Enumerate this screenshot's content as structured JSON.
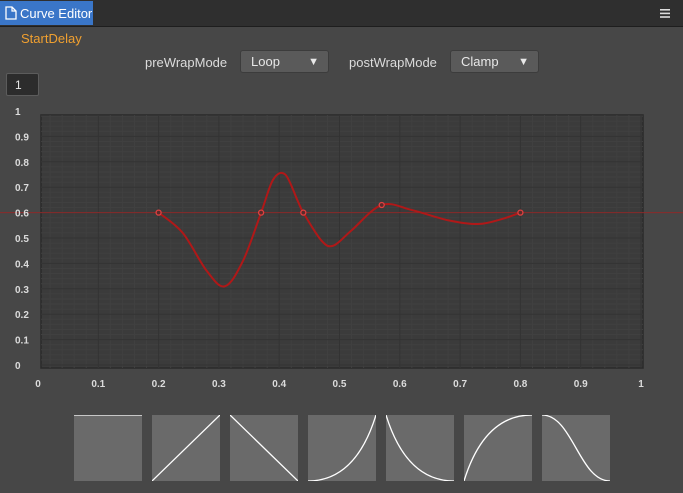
{
  "window": {
    "tab_title": "Curve Editor",
    "tab_icon": "document-icon",
    "menu_icon": "hamburger-menu-icon"
  },
  "curve_name": "StartDelay",
  "wrap": {
    "pre_label": "preWrapMode",
    "pre_value": "Loop",
    "post_label": "postWrapMode",
    "post_value": "Clamp",
    "arrow": "▼"
  },
  "y_max_value": "1",
  "colors": {
    "curve": "#b01818",
    "keyframe": "#e04040",
    "accent_tab": "#3a76c8",
    "curve_name": "#f0a030",
    "zero_line": "#8a2a2a"
  },
  "chart_data": {
    "type": "line",
    "xlim": [
      0,
      1
    ],
    "ylim": [
      0,
      1
    ],
    "x_ticks": [
      "0",
      "0.1",
      "0.2",
      "0.3",
      "0.4",
      "0.5",
      "0.6",
      "0.7",
      "0.8",
      "0.9",
      "1"
    ],
    "y_ticks": [
      "0",
      "0.1",
      "0.2",
      "0.3",
      "0.4",
      "0.5",
      "0.6",
      "0.7",
      "0.8",
      "0.9",
      "1"
    ],
    "grid": true,
    "reference_line_y": 0.6,
    "keyframes": [
      {
        "x": 0.2,
        "y": 0.6
      },
      {
        "x": 0.37,
        "y": 0.6
      },
      {
        "x": 0.44,
        "y": 0.6
      },
      {
        "x": 0.57,
        "y": 0.63
      },
      {
        "x": 0.8,
        "y": 0.6
      }
    ],
    "curve": [
      {
        "x": 0.2,
        "y": 0.6
      },
      {
        "x": 0.24,
        "y": 0.52
      },
      {
        "x": 0.28,
        "y": 0.37
      },
      {
        "x": 0.31,
        "y": 0.31
      },
      {
        "x": 0.34,
        "y": 0.41
      },
      {
        "x": 0.37,
        "y": 0.6
      },
      {
        "x": 0.39,
        "y": 0.73
      },
      {
        "x": 0.41,
        "y": 0.75
      },
      {
        "x": 0.43,
        "y": 0.65
      },
      {
        "x": 0.44,
        "y": 0.6
      },
      {
        "x": 0.47,
        "y": 0.49
      },
      {
        "x": 0.49,
        "y": 0.47
      },
      {
        "x": 0.52,
        "y": 0.53
      },
      {
        "x": 0.57,
        "y": 0.63
      },
      {
        "x": 0.62,
        "y": 0.61
      },
      {
        "x": 0.68,
        "y": 0.57
      },
      {
        "x": 0.73,
        "y": 0.555
      },
      {
        "x": 0.77,
        "y": 0.575
      },
      {
        "x": 0.8,
        "y": 0.6
      }
    ]
  },
  "presets": [
    {
      "name": "preset-constant",
      "icon": "constant-curve-icon",
      "curve": [
        [
          0,
          1
        ],
        [
          1,
          1
        ]
      ]
    },
    {
      "name": "preset-linear-up",
      "icon": "linear-up-icon",
      "curve": [
        [
          0,
          0
        ],
        [
          1,
          1
        ]
      ]
    },
    {
      "name": "preset-linear-down",
      "icon": "linear-down-icon",
      "curve": [
        [
          0,
          1
        ],
        [
          1,
          0
        ]
      ]
    },
    {
      "name": "preset-ease-in",
      "icon": "ease-in-icon",
      "curve": "easeIn"
    },
    {
      "name": "preset-ease-in-down",
      "icon": "ease-in-down-icon",
      "curve": "easeInDown"
    },
    {
      "name": "preset-ease-out",
      "icon": "ease-out-icon",
      "curve": "easeOut"
    },
    {
      "name": "preset-ease-in-out-down",
      "icon": "ease-in-out-down-icon",
      "curve": "easeInOutDown"
    }
  ]
}
